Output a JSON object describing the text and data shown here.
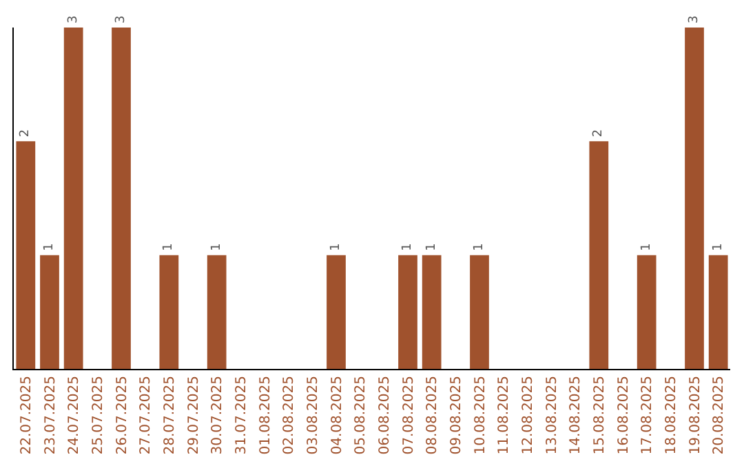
{
  "chart_data": {
    "type": "bar",
    "categories": [
      "22.07.2025",
      "23.07.2025",
      "24.07.2025",
      "25.07.2025",
      "26.07.2025",
      "27.07.2025",
      "28.07.2025",
      "29.07.2025",
      "30.07.2025",
      "31.07.2025",
      "01.08.2025",
      "02.08.2025",
      "03.08.2025",
      "04.08.2025",
      "05.08.2025",
      "06.08.2025",
      "07.08.2025",
      "08.08.2025",
      "09.08.2025",
      "10.08.2025",
      "11.08.2025",
      "12.08.2025",
      "13.08.2025",
      "14.08.2025",
      "15.08.2025",
      "16.08.2025",
      "17.08.2025",
      "18.08.2025",
      "19.08.2025",
      "20.08.2025"
    ],
    "values": [
      2,
      1,
      3,
      0,
      3,
      0,
      1,
      0,
      1,
      0,
      0,
      0,
      0,
      1,
      0,
      0,
      1,
      1,
      0,
      1,
      0,
      0,
      0,
      0,
      2,
      0,
      1,
      0,
      3,
      1
    ],
    "value_labels": [
      "2",
      "1",
      "3",
      null,
      "3",
      null,
      "1",
      null,
      "1",
      null,
      null,
      null,
      null,
      "1",
      null,
      null,
      "1",
      "1",
      null,
      "1",
      null,
      null,
      null,
      null,
      "2",
      null,
      "1",
      null,
      "3",
      "1"
    ],
    "color": "#a0522d",
    "ylim": [
      0,
      3
    ],
    "tick_labels": "x"
  }
}
